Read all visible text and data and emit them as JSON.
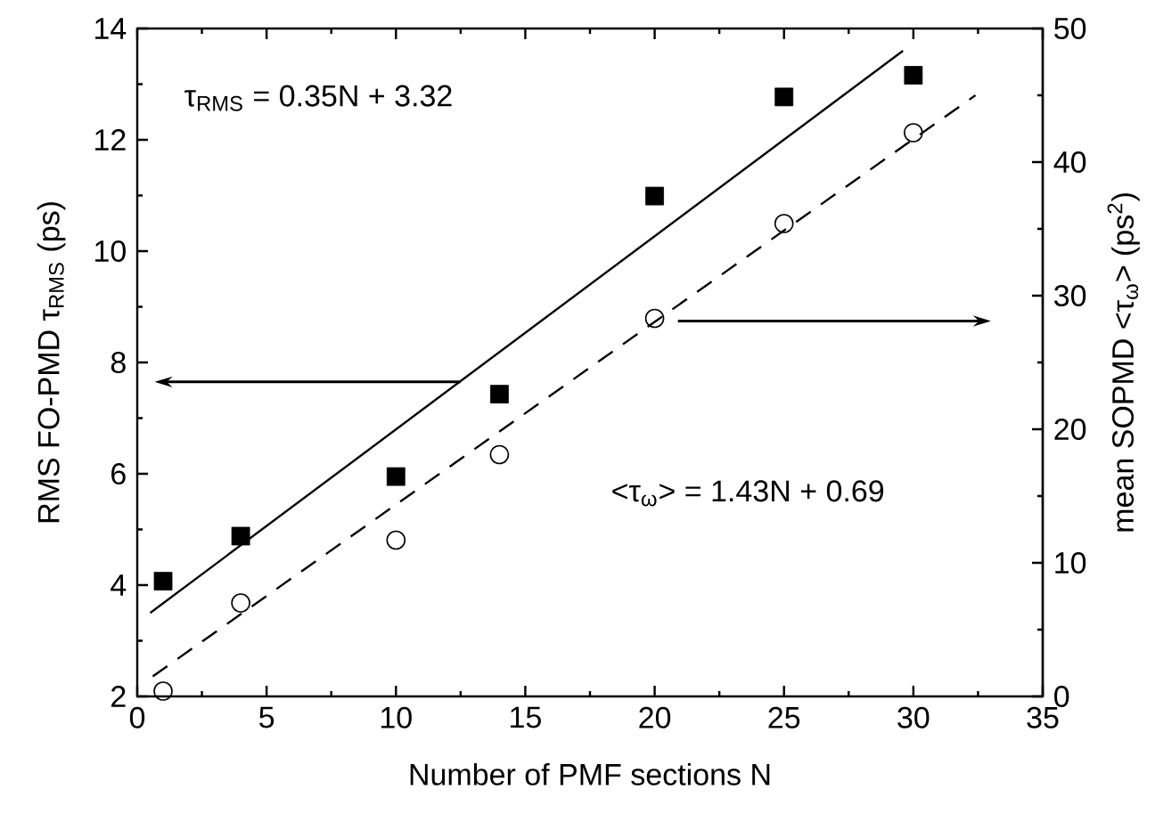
{
  "chart_data": {
    "type": "scatter",
    "xlabel": "Number of PMF sections N",
    "ylabel": "RMS FO-PMD τ$_{RMS}$ (ps)",
    "y2label": "mean SOPMD <τ$_{ω}$> (ps$^{2}$)",
    "xlim": [
      0,
      35
    ],
    "xticks": [
      0,
      5,
      10,
      15,
      20,
      25,
      30,
      35
    ],
    "ylim": [
      2,
      14
    ],
    "yticks": [
      2,
      4,
      6,
      8,
      10,
      12,
      14
    ],
    "y2lim": [
      0,
      50
    ],
    "y2ticks": [
      0,
      10,
      20,
      30,
      40,
      50
    ],
    "annotations": [
      "τ$_{RMS}$ = 0.35N + 3.32",
      "<τ$_{ω}$> = 1.43N + 0.69"
    ],
    "series": [
      {
        "marker": "square",
        "color": "#000000",
        "x": [
          1,
          4,
          10,
          14,
          20,
          25,
          30
        ],
        "values": [
          4.07,
          4.88,
          5.95,
          7.43,
          10.99,
          12.77,
          13.16
        ]
      },
      {
        "marker": "circle",
        "color": "#000000",
        "axis": "y2",
        "x": [
          1,
          4,
          10,
          14,
          20,
          25,
          30
        ],
        "values": [
          0.4,
          7.0,
          11.7,
          18.1,
          28.3,
          35.4,
          42.2
        ]
      },
      {
        "type": "line",
        "line_style": "solid",
        "color": "#000000",
        "x": [
          0.5,
          29.6
        ],
        "values": [
          3.5,
          13.6
        ]
      },
      {
        "type": "line",
        "line_style": "dashed",
        "color": "#000000",
        "axis": "y2",
        "x": [
          0.6,
          32.4
        ],
        "values": [
          1.5,
          45.0
        ]
      }
    ]
  }
}
